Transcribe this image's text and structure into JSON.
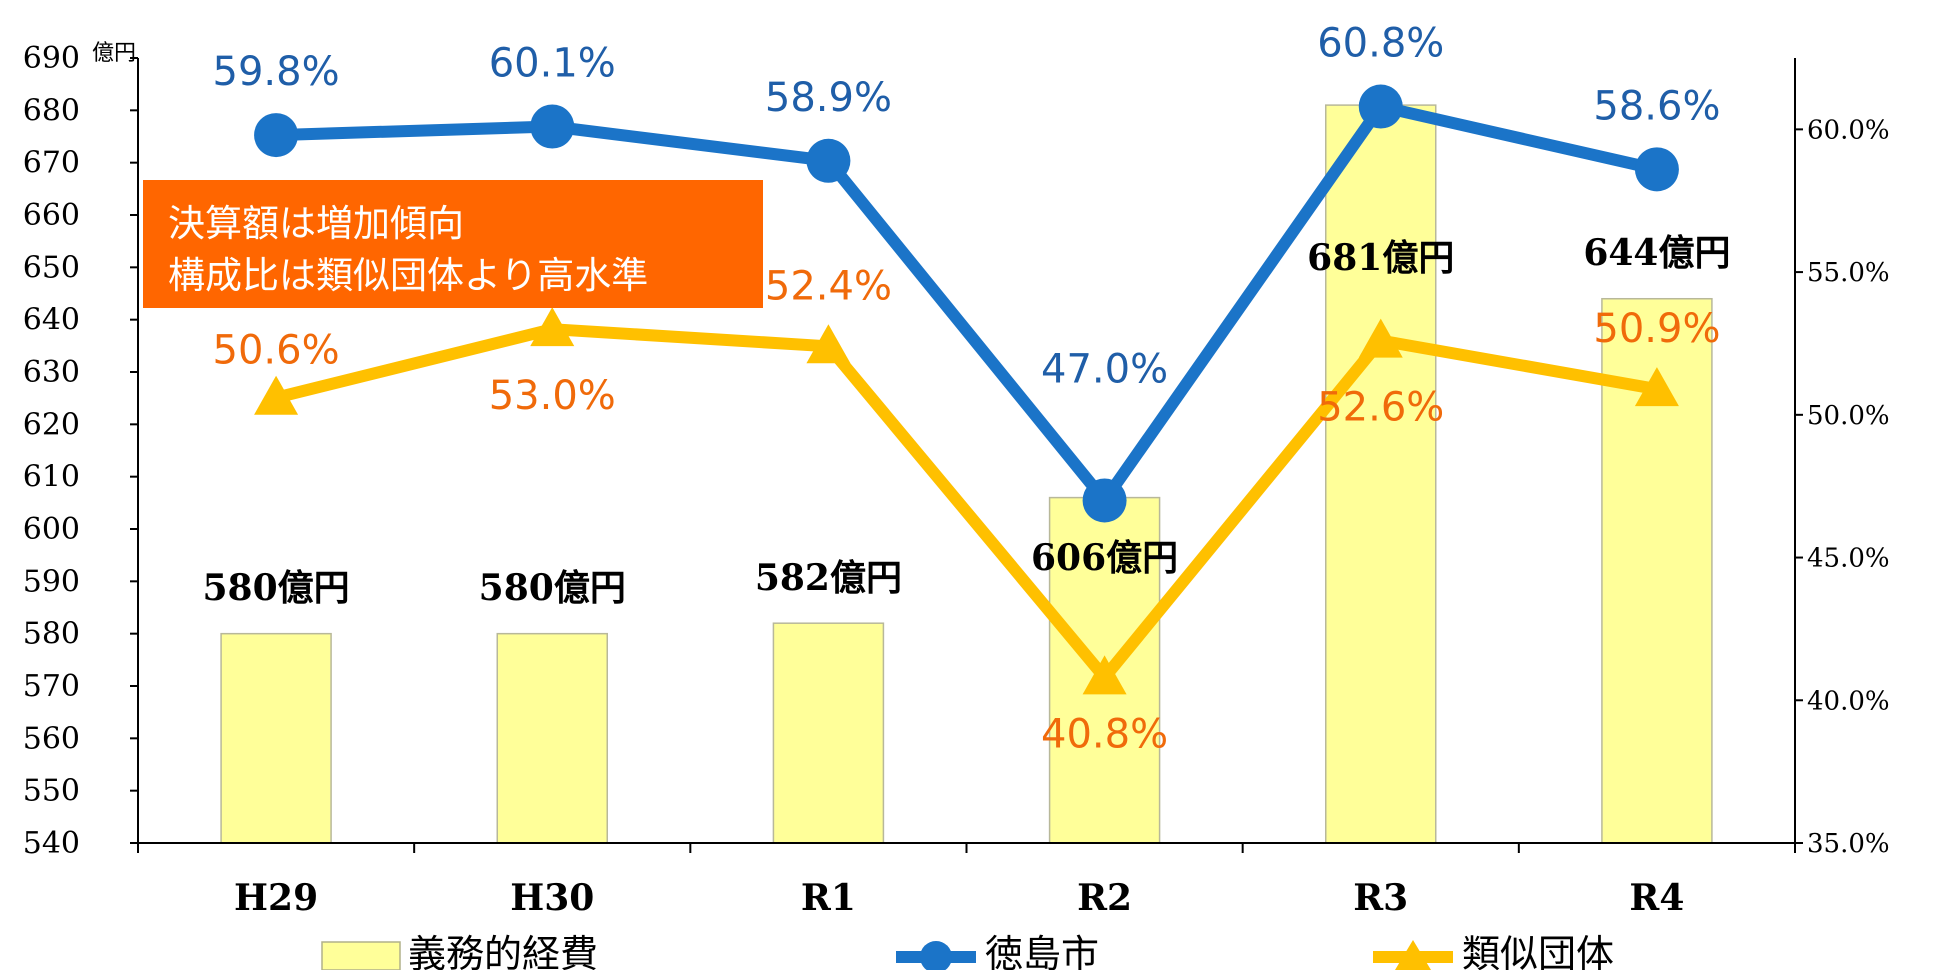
{
  "chart_data": {
    "type": "bar+line",
    "categories": [
      "H29",
      "H30",
      "R1",
      "R2",
      "R3",
      "R4"
    ],
    "bar_series": {
      "name": "義務的経費",
      "values": [
        580,
        580,
        582,
        606,
        681,
        644
      ],
      "labels": [
        "580億円",
        "580億円",
        "582億円",
        "606億円",
        "681億円",
        "644億円"
      ],
      "color": "#ffff99"
    },
    "line_series": [
      {
        "name": "徳島市",
        "values": [
          59.8,
          60.1,
          58.9,
          47.0,
          60.8,
          58.6
        ],
        "labels": [
          "59.8%",
          "60.1%",
          "58.9%",
          "47.0%",
          "60.8%",
          "58.6%"
        ],
        "color": "#1b74c8",
        "label_color": "#1f5ea8",
        "marker": "circle"
      },
      {
        "name": "類似団体",
        "values": [
          50.6,
          53.0,
          52.4,
          40.8,
          52.6,
          50.9
        ],
        "labels": [
          "50.6%",
          "53.0%",
          "52.4%",
          "40.8%",
          "52.6%",
          "50.9%"
        ],
        "color": "#ffc000",
        "label_color": "#f06a0a",
        "marker": "triangle"
      }
    ],
    "y_left": {
      "min": 540,
      "max": 690,
      "step": 10,
      "unit": "億円",
      "ticks": [
        "540",
        "550",
        "560",
        "570",
        "580",
        "590",
        "600",
        "610",
        "620",
        "630",
        "640",
        "650",
        "660",
        "670",
        "680",
        "690"
      ]
    },
    "y_right": {
      "min": 35,
      "max": 62.5,
      "ticks": [
        35,
        40,
        45,
        50,
        55,
        60
      ],
      "tick_labels": [
        "35.0%",
        "40.0%",
        "45.0%",
        "50.0%",
        "55.0%",
        "60.0%"
      ]
    },
    "annotation": {
      "lines": [
        "決算額は増加傾向",
        "構成比は類似団体より高水準"
      ],
      "color": "#ff6600"
    },
    "legend_position": "bottom"
  }
}
